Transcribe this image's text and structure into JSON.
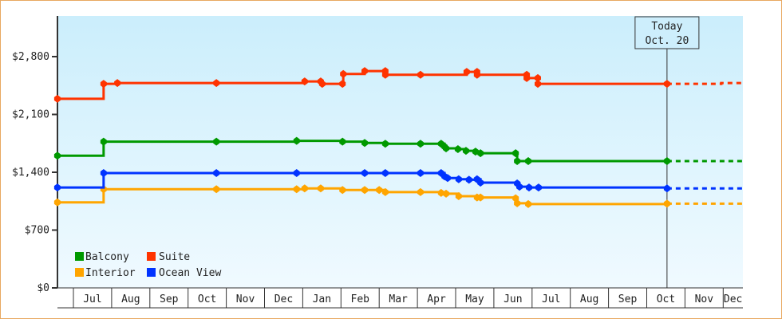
{
  "chart_data": {
    "type": "line",
    "title": "",
    "xlabel": "",
    "ylabel": "",
    "x_unit": "months since Jul 1 (first year)",
    "xlim": [
      -0.42,
      17.52
    ],
    "ylim": [
      0,
      3100
    ],
    "yticks": [
      0,
      700,
      1400,
      2100,
      2800
    ],
    "ytick_labels": [
      "$0",
      "$700",
      "$1,400",
      "$2,100",
      "$2,800"
    ],
    "month_labels": [
      "Jul",
      "Aug",
      "Sep",
      "Oct",
      "Nov",
      "Dec",
      "Jan",
      "Feb",
      "Mar",
      "Apr",
      "May",
      "Jun",
      "Jul",
      "Aug",
      "Sep",
      "Oct",
      "Nov",
      "Dec"
    ],
    "today": {
      "label_line1": "Today",
      "label_line2": "Oct. 20",
      "x": 15.53
    },
    "legend": {
      "placement": "bottom-left"
    },
    "series": [
      {
        "name": "Balcony",
        "color": "#009900",
        "points": [
          [
            -0.42,
            1600
          ],
          [
            0.79,
            1770
          ],
          [
            3.74,
            1770
          ],
          [
            5.84,
            1780
          ],
          [
            7.04,
            1770
          ],
          [
            7.62,
            1755
          ],
          [
            8.16,
            1745
          ],
          [
            9.08,
            1745
          ],
          [
            9.62,
            1745
          ],
          [
            9.71,
            1710
          ],
          [
            9.75,
            1690
          ],
          [
            10.06,
            1680
          ],
          [
            10.27,
            1660
          ],
          [
            10.52,
            1650
          ],
          [
            10.65,
            1630
          ],
          [
            11.57,
            1630
          ],
          [
            11.61,
            1535
          ],
          [
            11.9,
            1535
          ],
          [
            15.53,
            1535
          ]
        ],
        "forecast": [
          [
            15.53,
            1535
          ],
          [
            17.52,
            1535
          ]
        ]
      },
      {
        "name": "Suite",
        "color": "#ff3300",
        "points": [
          [
            -0.42,
            2290
          ],
          [
            0.79,
            2470
          ],
          [
            1.15,
            2480
          ],
          [
            3.74,
            2480
          ],
          [
            6.05,
            2500
          ],
          [
            6.47,
            2500
          ],
          [
            6.51,
            2470
          ],
          [
            7.04,
            2470
          ],
          [
            7.06,
            2590
          ],
          [
            7.62,
            2625
          ],
          [
            8.16,
            2625
          ],
          [
            8.16,
            2580
          ],
          [
            9.08,
            2580
          ],
          [
            10.29,
            2615
          ],
          [
            10.56,
            2615
          ],
          [
            10.56,
            2580
          ],
          [
            11.86,
            2580
          ],
          [
            11.86,
            2540
          ],
          [
            12.15,
            2540
          ],
          [
            12.15,
            2470
          ],
          [
            15.53,
            2470
          ]
        ],
        "forecast": [
          [
            15.53,
            2470
          ],
          [
            16.95,
            2480
          ],
          [
            17.52,
            2490
          ]
        ]
      },
      {
        "name": "Interior",
        "color": "#ffa500",
        "points": [
          [
            -0.42,
            1035
          ],
          [
            0.79,
            1195
          ],
          [
            3.74,
            1195
          ],
          [
            5.84,
            1195
          ],
          [
            6.05,
            1205
          ],
          [
            6.47,
            1205
          ],
          [
            7.04,
            1185
          ],
          [
            7.62,
            1185
          ],
          [
            8.0,
            1185
          ],
          [
            8.16,
            1160
          ],
          [
            9.08,
            1160
          ],
          [
            9.62,
            1150
          ],
          [
            9.75,
            1140
          ],
          [
            10.08,
            1110
          ],
          [
            10.56,
            1095
          ],
          [
            10.65,
            1095
          ],
          [
            11.57,
            1085
          ],
          [
            11.61,
            1025
          ],
          [
            11.9,
            1015
          ],
          [
            15.53,
            1020
          ]
        ],
        "forecast": [
          [
            15.53,
            1020
          ],
          [
            17.52,
            1020
          ]
        ]
      },
      {
        "name": "Ocean View",
        "color": "#0033ff",
        "points": [
          [
            -0.42,
            1215
          ],
          [
            0.79,
            1390
          ],
          [
            3.74,
            1390
          ],
          [
            5.84,
            1390
          ],
          [
            7.62,
            1390
          ],
          [
            8.16,
            1390
          ],
          [
            9.08,
            1390
          ],
          [
            9.62,
            1390
          ],
          [
            9.71,
            1350
          ],
          [
            9.79,
            1330
          ],
          [
            10.08,
            1315
          ],
          [
            10.35,
            1310
          ],
          [
            10.56,
            1315
          ],
          [
            10.65,
            1275
          ],
          [
            11.61,
            1265
          ],
          [
            11.67,
            1225
          ],
          [
            11.92,
            1215
          ],
          [
            12.17,
            1215
          ],
          [
            15.53,
            1205
          ]
        ],
        "forecast": [
          [
            15.53,
            1205
          ],
          [
            17.52,
            1205
          ]
        ]
      }
    ]
  }
}
